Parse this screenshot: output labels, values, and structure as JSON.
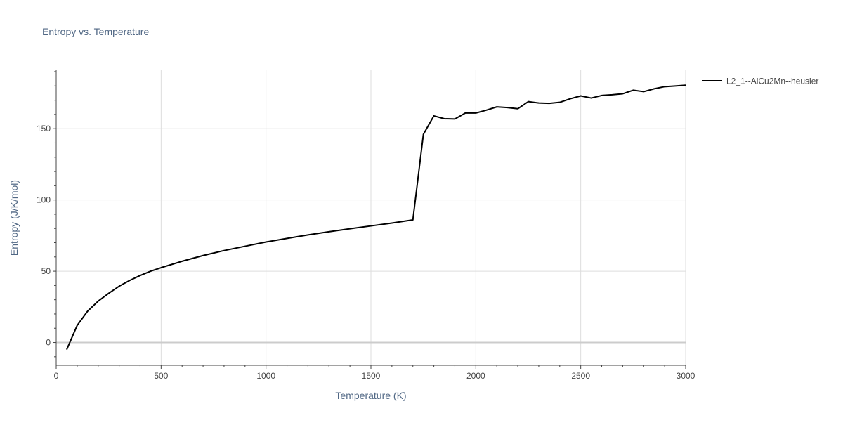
{
  "chart_data": {
    "type": "line",
    "title": "Entropy vs. Temperature",
    "xlabel": "Temperature (K)",
    "ylabel": "Entropy (J/K/mol)",
    "xlim": [
      0,
      3000
    ],
    "ylim": [
      -16,
      191
    ],
    "xticks": [
      0,
      500,
      1000,
      1500,
      2000,
      2500,
      3000
    ],
    "yticks": [
      0,
      50,
      100,
      150
    ],
    "grid": true,
    "legend_position": "top-right",
    "series": [
      {
        "name": "L2_1--AlCu2Mn--heusler",
        "color": "#000000",
        "x": [
          50,
          100,
          150,
          200,
          250,
          300,
          350,
          400,
          450,
          500,
          600,
          700,
          800,
          900,
          1000,
          1100,
          1200,
          1300,
          1400,
          1500,
          1600,
          1700,
          1750,
          1800,
          1850,
          1900,
          1950,
          2000,
          2050,
          2100,
          2150,
          2200,
          2250,
          2300,
          2350,
          2400,
          2450,
          2500,
          2550,
          2600,
          2650,
          2700,
          2750,
          2800,
          2850,
          2900,
          2950,
          3000
        ],
        "y": [
          -5,
          12,
          22,
          29,
          34.5,
          39.5,
          43.5,
          47,
          50,
          52.5,
          57,
          61,
          64.5,
          67.5,
          70.5,
          73,
          75.5,
          77.7,
          79.8,
          81.8,
          83.8,
          86,
          146,
          159,
          157,
          156.8,
          161,
          161,
          163,
          165.3,
          164.8,
          164,
          169,
          168,
          167.8,
          168.5,
          171,
          173,
          171.5,
          173.3,
          173.8,
          174.5,
          177,
          176,
          178,
          179.5,
          180,
          180.5
        ]
      }
    ]
  },
  "colors": {
    "grid": "#dddddd",
    "zero_line": "#cccccc",
    "axis_text": "#444444",
    "title_text": "#444444",
    "label_text": "#506784"
  }
}
